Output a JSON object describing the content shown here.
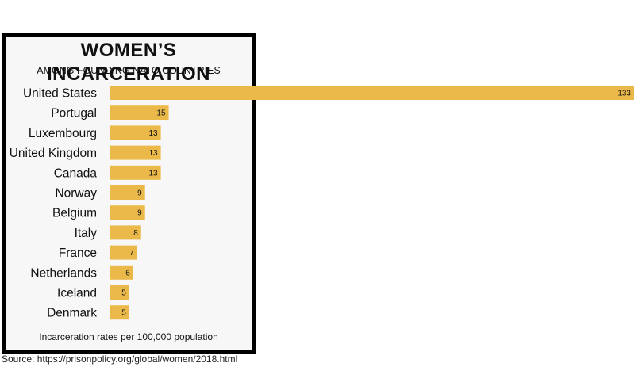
{
  "colors": {
    "bar": "#ebb94a",
    "panel_border": "#000000",
    "panel_bg": "#f7f7f7"
  },
  "chart_data": {
    "type": "bar",
    "orientation": "horizontal",
    "title": "WOMEN’S INCARCERATION",
    "subtitle": "AMONG FOUNDING NATO COUNTRIES",
    "xlabel": "Incarceration rates per 100,000 population",
    "categories": [
      "United States",
      "Portugal",
      "Luxembourg",
      "United Kingdom",
      "Canada",
      "Norway",
      "Belgium",
      "Italy",
      "France",
      "Netherlands",
      "Iceland",
      "Denmark"
    ],
    "values": [
      133,
      15,
      13,
      13,
      13,
      9,
      9,
      8,
      7,
      6,
      5,
      5
    ],
    "xlim": [
      0,
      133
    ],
    "grid": false,
    "legend": "none"
  },
  "source": "Source: https://prisonpolicy.org/global/women/2018.html"
}
